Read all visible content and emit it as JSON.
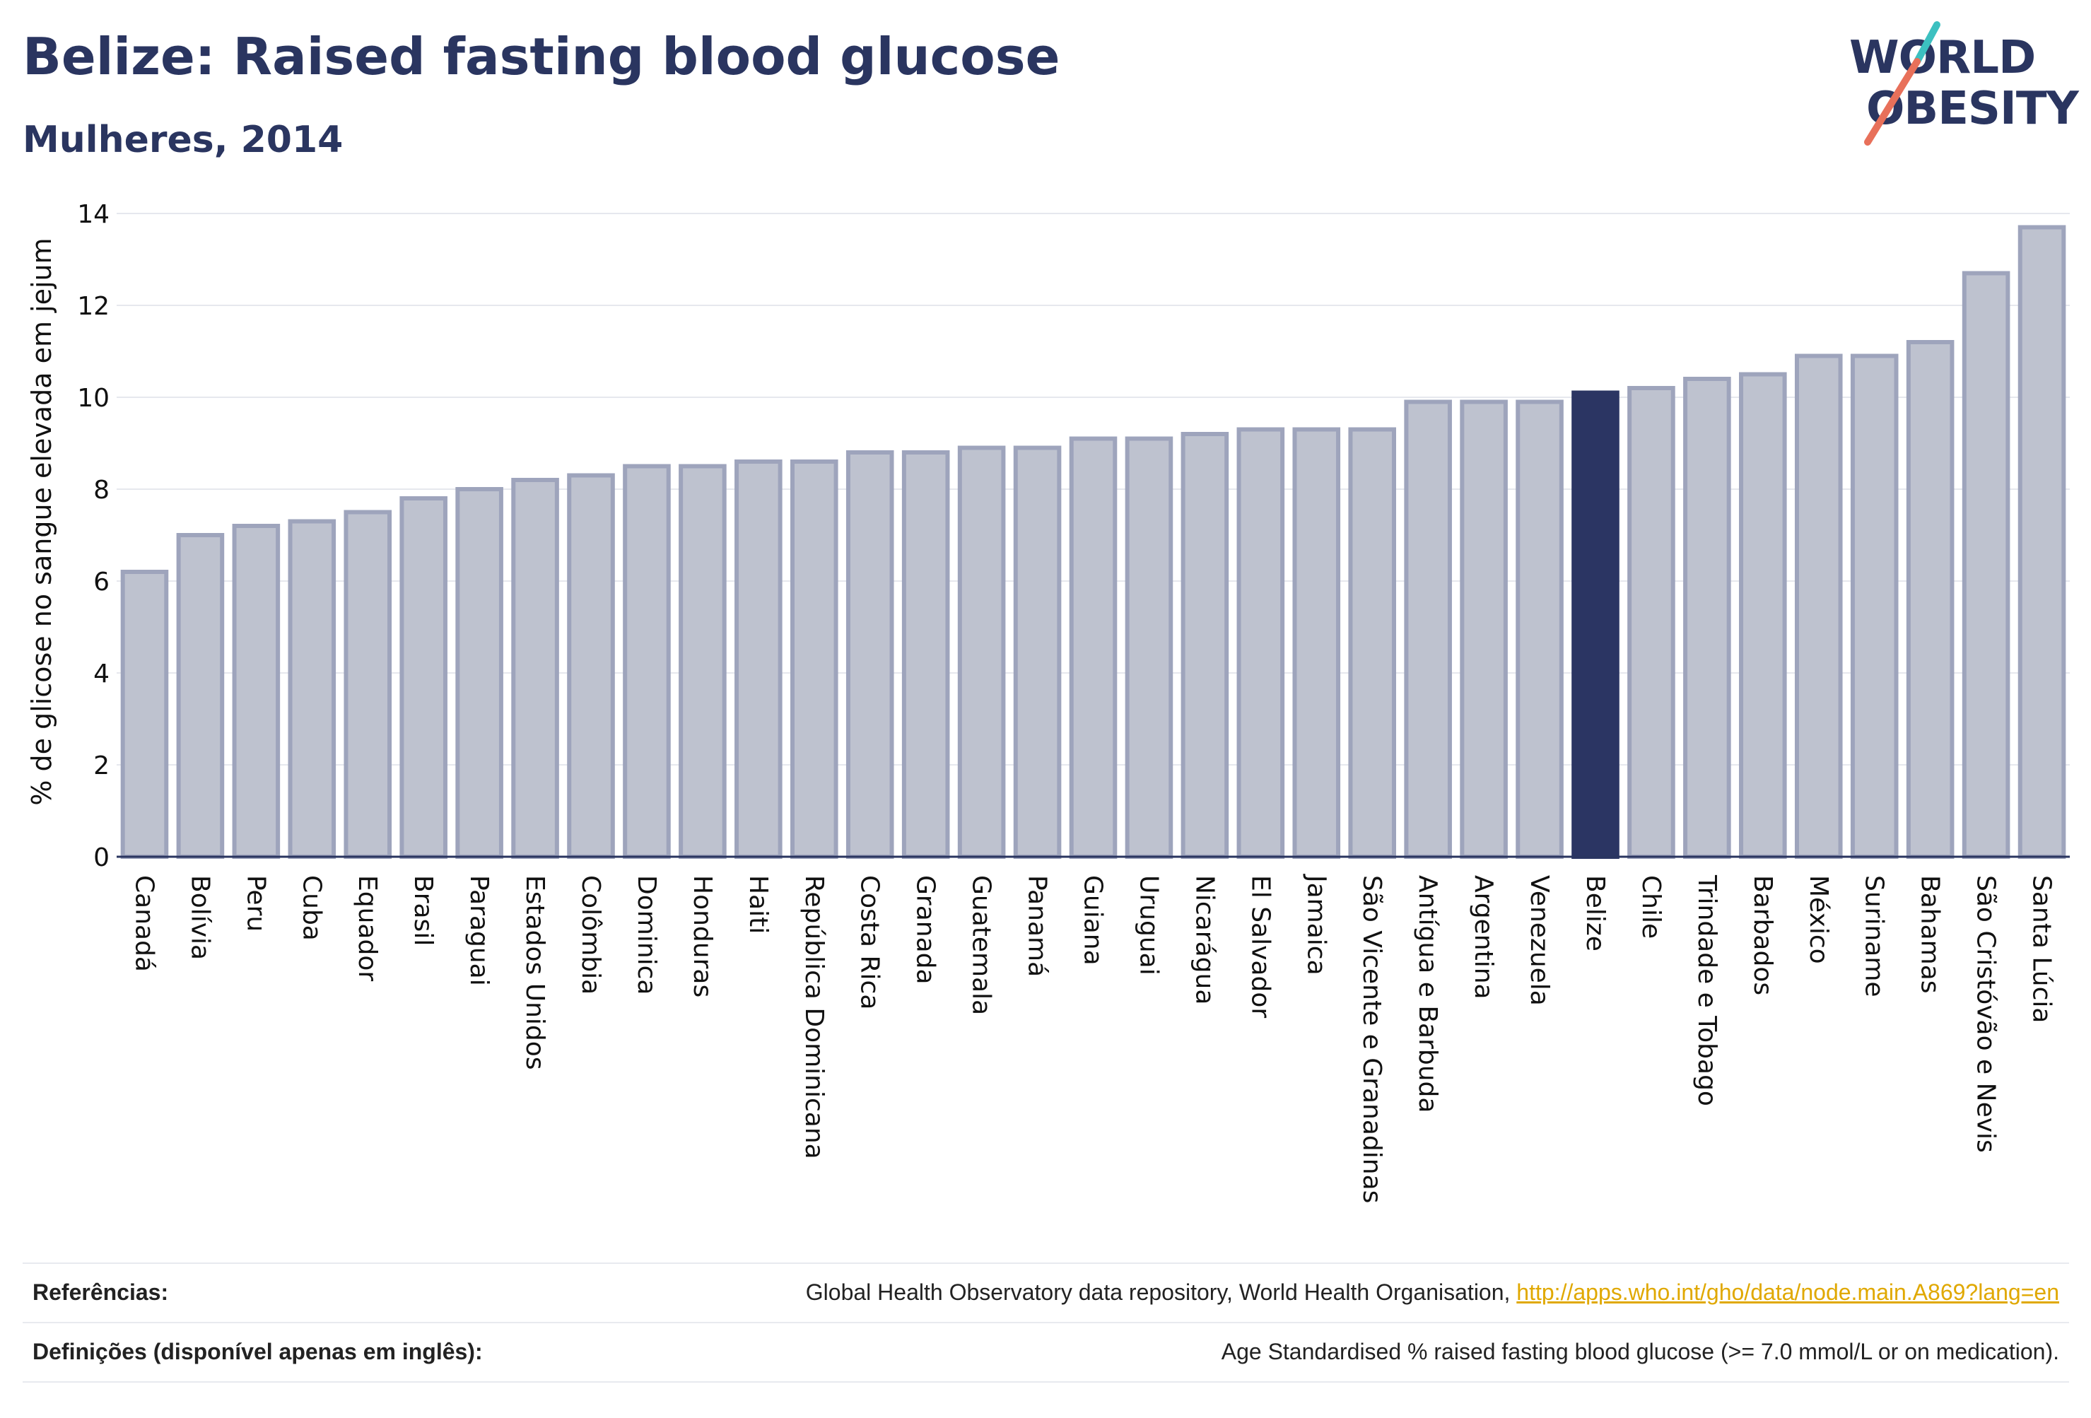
{
  "header": {
    "title": "Belize: Raised fasting blood glucose",
    "subtitle": "Mulheres, 2014"
  },
  "logo": {
    "line1": "WORLD",
    "line2": "OBESITY"
  },
  "colors": {
    "highlight_bar": "#2b3563",
    "bar_fill": "#bec2cf",
    "bar_stroke": "#9ea4bc",
    "text": "#2a3560",
    "link": "#e0a800",
    "logo_teal": "#3cc0c0",
    "logo_coral": "#e8705a"
  },
  "chart_data": {
    "type": "bar",
    "title": "Belize: Raised fasting blood glucose",
    "subtitle": "Mulheres, 2014",
    "xlabel": "",
    "ylabel": "% de glicose no sangue elevada em jejum",
    "ylim": [
      0,
      14
    ],
    "yticks": [
      0,
      2,
      4,
      6,
      8,
      10,
      12,
      14
    ],
    "grid": true,
    "highlight": "Belize",
    "categories": [
      "Canadá",
      "Bolívia",
      "Peru",
      "Cuba",
      "Equador",
      "Brasil",
      "Paraguai",
      "Estados Unidos",
      "Colômbia",
      "Dominica",
      "Honduras",
      "Haiti",
      "República Dominicana",
      "Costa Rica",
      "Granada",
      "Guatemala",
      "Panamá",
      "Guiana",
      "Uruguai",
      "Nicarágua",
      "El Salvador",
      "Jamaica",
      "São Vicente e Granadinas",
      "Antígua e Barbuda",
      "Argentina",
      "Venezuela",
      "Belize",
      "Chile",
      "Trindade e Tobago",
      "Barbados",
      "México",
      "Suriname",
      "Bahamas",
      "São Cristóvão e Nevis",
      "Santa Lúcia"
    ],
    "values": [
      6.2,
      7.0,
      7.2,
      7.3,
      7.5,
      7.8,
      8.0,
      8.2,
      8.3,
      8.5,
      8.5,
      8.6,
      8.6,
      8.8,
      8.8,
      8.9,
      8.9,
      9.1,
      9.1,
      9.2,
      9.3,
      9.3,
      9.3,
      9.9,
      9.9,
      9.9,
      10.1,
      10.2,
      10.4,
      10.5,
      10.9,
      10.9,
      11.2,
      12.7,
      13.7
    ]
  },
  "footer": {
    "references_label": "Referências:",
    "references_text": "Global Health Observatory data repository, World Health Organisation, ",
    "references_link": "http://apps.who.int/gho/data/node.main.A869?lang=en",
    "definitions_label": "Definições (disponível apenas em inglês):",
    "definitions_text": "Age Standardised % raised fasting blood glucose (>= 7.0 mmol/L or on medication)."
  }
}
